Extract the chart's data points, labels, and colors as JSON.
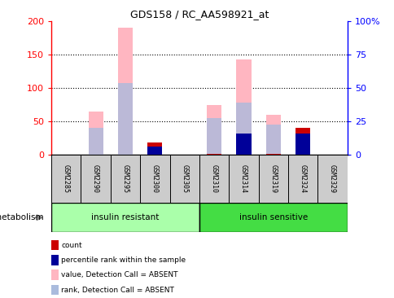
{
  "title": "GDS158 / RC_AA598921_at",
  "samples": [
    "GSM2285",
    "GSM2290",
    "GSM2295",
    "GSM2300",
    "GSM2305",
    "GSM2310",
    "GSM2314",
    "GSM2319",
    "GSM2324",
    "GSM2329"
  ],
  "groups": [
    {
      "label": "insulin resistant",
      "color": "#AAFFAA",
      "indices": [
        0,
        4
      ]
    },
    {
      "label": "insulin sensitive",
      "color": "#44DD44",
      "indices": [
        5,
        9
      ]
    }
  ],
  "group_label": "metabolism",
  "value_absent": [
    0,
    65,
    190,
    0,
    0,
    75,
    142,
    60,
    0,
    0
  ],
  "rank_absent": [
    0,
    40,
    107,
    0,
    0,
    55,
    78,
    45,
    0,
    0
  ],
  "count": [
    0,
    0,
    0,
    18,
    0,
    2,
    2,
    2,
    40,
    0
  ],
  "percentile": [
    0,
    0,
    0,
    12,
    0,
    0,
    32,
    0,
    32,
    0
  ],
  "ylim_left": [
    0,
    200
  ],
  "ylim_right": [
    0,
    100
  ],
  "yticks_left": [
    0,
    50,
    100,
    150,
    200
  ],
  "yticks_right": [
    0,
    25,
    50,
    75,
    100
  ],
  "ytick_labels_right": [
    "0",
    "25",
    "50",
    "75",
    "100%"
  ],
  "color_value_absent": "#FFB6C1",
  "color_rank_absent": "#AABBDD",
  "color_count": "#CC0000",
  "color_percentile": "#000099",
  "bar_width": 0.5,
  "bg_color_samples": "#CCCCCC",
  "legend_items": [
    {
      "color": "#CC0000",
      "label": "count"
    },
    {
      "color": "#000099",
      "label": "percentile rank within the sample"
    },
    {
      "color": "#FFB6C1",
      "label": "value, Detection Call = ABSENT"
    },
    {
      "color": "#AABBDD",
      "label": "rank, Detection Call = ABSENT"
    }
  ]
}
